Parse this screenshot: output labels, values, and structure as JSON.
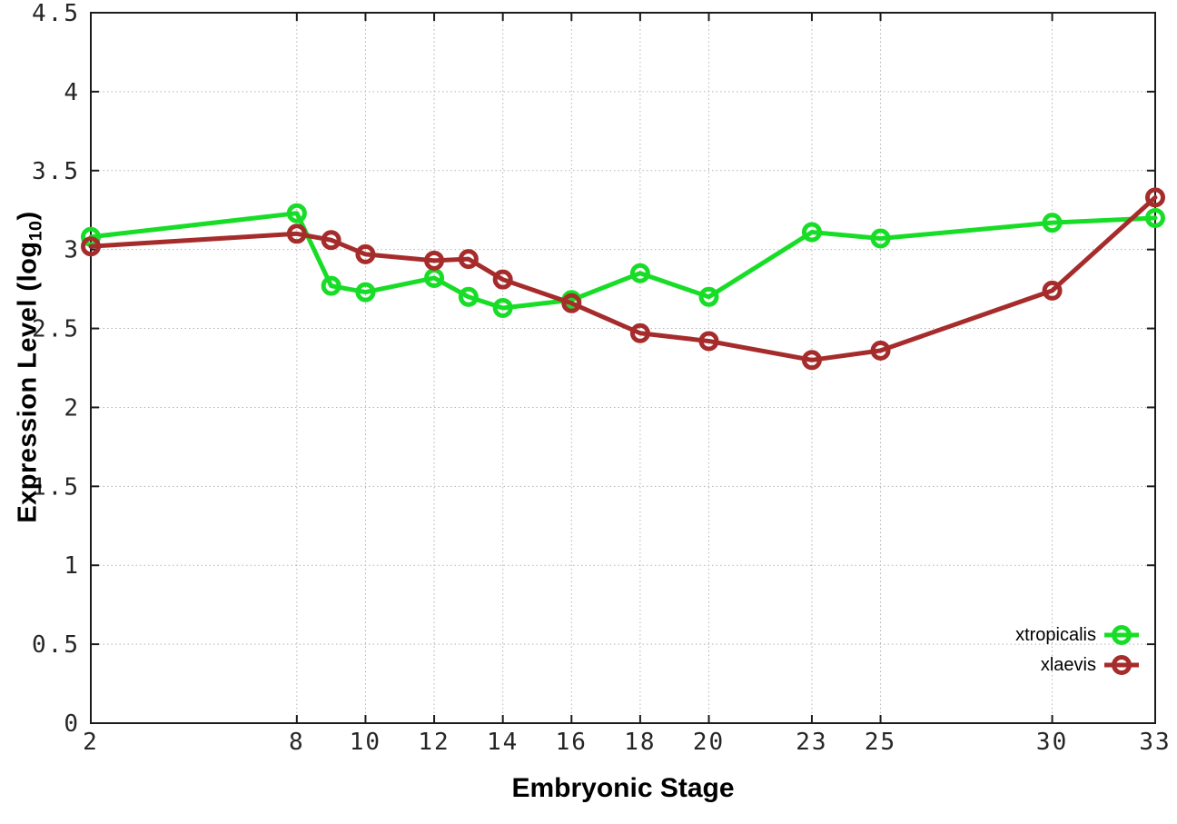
{
  "figure": {
    "background": "#ffffff",
    "x_axis_title": "Embryonic Stage",
    "y_axis_title": {
      "prefix": "Expression Level (log",
      "subscript": "10",
      "suffix": ")"
    }
  },
  "chart_data": {
    "type": "line",
    "title": "",
    "xlabel": "Embryonic Stage",
    "ylabel": "Expression Level (log10)",
    "xlim": [
      2,
      33
    ],
    "ylim": [
      0,
      4.5
    ],
    "grid": true,
    "grid_color": "#b4b4b4",
    "axis_color": "#1c1c1c",
    "legend_position": "bottom-right",
    "x_ticks": [
      2,
      8,
      10,
      12,
      14,
      16,
      18,
      20,
      23,
      25,
      30,
      33
    ],
    "y_ticks": [
      0,
      0.5,
      1,
      1.5,
      2,
      2.5,
      3,
      3.5,
      4,
      4.5
    ],
    "y_tick_labels": [
      "0",
      "0.5",
      "1",
      "1.5",
      "2",
      "2.5",
      "3",
      "3.5",
      "4",
      "4.5"
    ],
    "x": [
      2,
      8,
      9,
      10,
      12,
      13,
      14,
      16,
      18,
      20,
      23,
      25,
      30,
      33
    ],
    "series": [
      {
        "name": "xtropicalis",
        "color": "#17dd27",
        "values": [
          3.08,
          3.23,
          2.77,
          2.73,
          2.82,
          2.7,
          2.63,
          2.68,
          2.85,
          2.7,
          3.11,
          3.07,
          3.17,
          3.2
        ]
      },
      {
        "name": "xlaevis",
        "color": "#a62c2c",
        "values": [
          3.02,
          3.1,
          3.06,
          2.97,
          2.93,
          2.94,
          2.81,
          2.66,
          2.47,
          2.42,
          2.3,
          2.36,
          2.74,
          3.33
        ]
      }
    ]
  }
}
